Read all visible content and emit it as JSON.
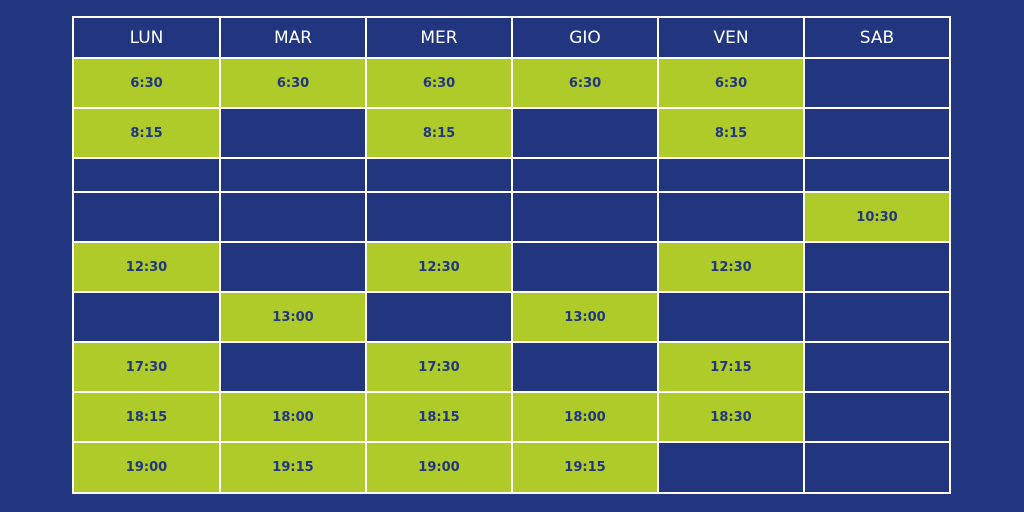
{
  "table": {
    "header": [
      "LUN",
      "MAR",
      "MER",
      "GIO",
      "VEN",
      "SAB"
    ],
    "rows": [
      [
        "6:30",
        "6:30",
        "6:30",
        "6:30",
        "6:30",
        null
      ],
      [
        "8:15",
        null,
        "8:15",
        null,
        "8:15",
        null
      ],
      [
        null,
        null,
        null,
        null,
        null,
        null
      ],
      [
        null,
        null,
        null,
        null,
        null,
        "10:30"
      ],
      [
        "12:30",
        null,
        "12:30",
        null,
        "12:30",
        null
      ],
      [
        null,
        "13:00",
        null,
        "13:00",
        null,
        null
      ],
      [
        "17:30",
        null,
        "17:30",
        null,
        "17:15",
        null
      ],
      [
        "18:15",
        "18:00",
        "18:15",
        "18:00",
        "18:30",
        null
      ],
      [
        "19:00",
        "19:15",
        "19:00",
        "19:15",
        null,
        null
      ]
    ]
  }
}
